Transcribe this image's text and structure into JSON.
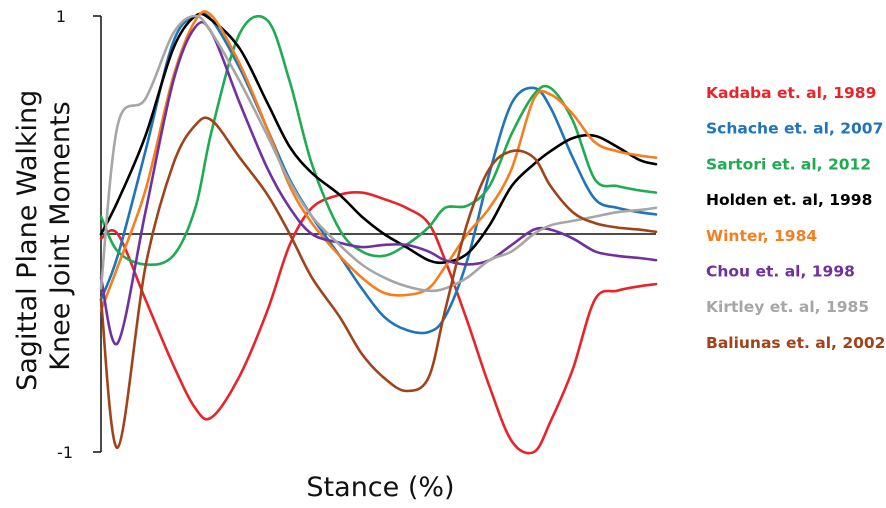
{
  "chart_data": {
    "type": "line",
    "title": "",
    "xlabel": "Stance (%)",
    "ylabel_lines": [
      "Sagittal Plane Walking",
      "Knee Joint Moments"
    ],
    "ylim": [
      -1,
      1
    ],
    "xlim": [
      0,
      100
    ],
    "yticks": [
      {
        "value": 1,
        "label": "1"
      },
      {
        "value": -1,
        "label": "-1"
      }
    ],
    "zero_line": true,
    "grid": false,
    "legend_position": "right",
    "series": [
      {
        "name": "Kadaba et. al, 1989",
        "color": "#e8242a",
        "x": [
          0,
          3,
          8,
          13,
          17,
          20,
          25,
          30,
          34,
          38,
          43,
          47,
          51,
          55,
          59,
          62,
          66,
          70,
          74,
          78,
          81,
          85,
          89,
          93,
          97,
          100
        ],
        "y": [
          -0.02,
          0.0,
          -0.3,
          -0.6,
          -0.8,
          -0.84,
          -0.65,
          -0.35,
          -0.05,
          0.12,
          0.18,
          0.19,
          0.16,
          0.12,
          0.05,
          -0.12,
          -0.4,
          -0.7,
          -0.95,
          -1.0,
          -0.86,
          -0.62,
          -0.3,
          -0.26,
          -0.24,
          -0.23
        ]
      },
      {
        "name": "Schache et. al, 2007",
        "color": "#1f74ba",
        "x": [
          0,
          3,
          8,
          13,
          17,
          20,
          25,
          30,
          34,
          38,
          43,
          47,
          51,
          55,
          59,
          62,
          66,
          70,
          74,
          78,
          81,
          85,
          89,
          93,
          97,
          100
        ],
        "y": [
          -0.3,
          -0.1,
          0.38,
          0.88,
          1.0,
          0.98,
          0.76,
          0.48,
          0.25,
          0.08,
          -0.1,
          -0.25,
          -0.38,
          -0.44,
          -0.45,
          -0.38,
          -0.12,
          0.28,
          0.6,
          0.67,
          0.58,
          0.35,
          0.16,
          0.12,
          0.1,
          0.09
        ]
      },
      {
        "name": "Sartori et. al, 2012",
        "color": "#1fab52",
        "x": [
          0,
          3,
          8,
          13,
          17,
          20,
          25,
          30,
          34,
          38,
          43,
          47,
          51,
          55,
          59,
          62,
          66,
          70,
          74,
          78,
          81,
          85,
          89,
          93,
          97,
          100
        ],
        "y": [
          0.08,
          -0.08,
          -0.14,
          -0.1,
          0.12,
          0.48,
          0.92,
          0.98,
          0.7,
          0.32,
          0.02,
          -0.08,
          -0.1,
          -0.05,
          0.03,
          0.12,
          0.13,
          0.22,
          0.46,
          0.64,
          0.67,
          0.52,
          0.25,
          0.22,
          0.2,
          0.19
        ]
      },
      {
        "name": "Holden et. al, 1998",
        "color": "#000000",
        "x": [
          0,
          3,
          8,
          13,
          17,
          20,
          25,
          30,
          34,
          38,
          43,
          47,
          51,
          55,
          59,
          62,
          66,
          70,
          74,
          78,
          81,
          85,
          89,
          93,
          97,
          100
        ],
        "y": [
          0.0,
          0.15,
          0.45,
          0.85,
          1.0,
          0.98,
          0.85,
          0.6,
          0.4,
          0.28,
          0.18,
          0.08,
          0.0,
          -0.06,
          -0.12,
          -0.13,
          -0.09,
          0.04,
          0.22,
          0.32,
          0.38,
          0.44,
          0.45,
          0.4,
          0.34,
          0.32
        ]
      },
      {
        "name": "Winter, 1984",
        "color": "#f57f20",
        "x": [
          0,
          3,
          8,
          13,
          17,
          20,
          25,
          30,
          34,
          38,
          43,
          47,
          51,
          55,
          59,
          62,
          66,
          70,
          74,
          78,
          81,
          85,
          89,
          93,
          97,
          100
        ],
        "y": [
          -0.35,
          -0.15,
          0.2,
          0.72,
          0.98,
          1.0,
          0.78,
          0.48,
          0.22,
          0.05,
          -0.1,
          -0.2,
          -0.27,
          -0.28,
          -0.25,
          -0.15,
          0.0,
          0.12,
          0.3,
          0.62,
          0.64,
          0.55,
          0.42,
          0.38,
          0.36,
          0.35
        ]
      },
      {
        "name": "Chou et. al, 1998",
        "color": "#7030a0",
        "x": [
          0,
          3,
          8,
          13,
          17,
          20,
          25,
          30,
          34,
          38,
          43,
          47,
          51,
          55,
          59,
          62,
          66,
          70,
          74,
          78,
          81,
          85,
          89,
          93,
          97,
          100
        ],
        "y": [
          -0.2,
          -0.5,
          0.1,
          0.7,
          0.95,
          0.92,
          0.6,
          0.3,
          0.12,
          0.0,
          -0.04,
          -0.06,
          -0.05,
          -0.05,
          -0.08,
          -0.12,
          -0.14,
          -0.12,
          -0.05,
          0.02,
          0.02,
          -0.02,
          -0.08,
          -0.1,
          -0.11,
          -0.12
        ]
      },
      {
        "name": "Kirtley et. al, 1985",
        "color": "#a6a6a6",
        "x": [
          0,
          3,
          8,
          13,
          17,
          20,
          25,
          30,
          34,
          38,
          43,
          47,
          51,
          55,
          59,
          62,
          66,
          70,
          74,
          78,
          81,
          85,
          89,
          93,
          97,
          100
        ],
        "y": [
          -0.25,
          0.5,
          0.62,
          0.92,
          1.0,
          0.92,
          0.7,
          0.45,
          0.24,
          0.08,
          -0.05,
          -0.14,
          -0.2,
          -0.24,
          -0.26,
          -0.25,
          -0.2,
          -0.12,
          -0.08,
          0.0,
          0.04,
          0.06,
          0.08,
          0.1,
          0.11,
          0.12
        ]
      },
      {
        "name": "Baliunas et. al, 2002",
        "color": "#a0431a",
        "x": [
          0,
          3,
          8,
          13,
          17,
          20,
          25,
          30,
          34,
          38,
          43,
          47,
          51,
          55,
          59,
          62,
          66,
          70,
          74,
          78,
          81,
          85,
          89,
          93,
          97,
          100
        ],
        "y": [
          -0.3,
          -0.98,
          -0.15,
          0.32,
          0.5,
          0.52,
          0.35,
          0.18,
          0.0,
          -0.2,
          -0.38,
          -0.55,
          -0.66,
          -0.72,
          -0.66,
          -0.35,
          0.05,
          0.3,
          0.38,
          0.35,
          0.22,
          0.1,
          0.05,
          0.03,
          0.02,
          0.01
        ]
      }
    ]
  }
}
